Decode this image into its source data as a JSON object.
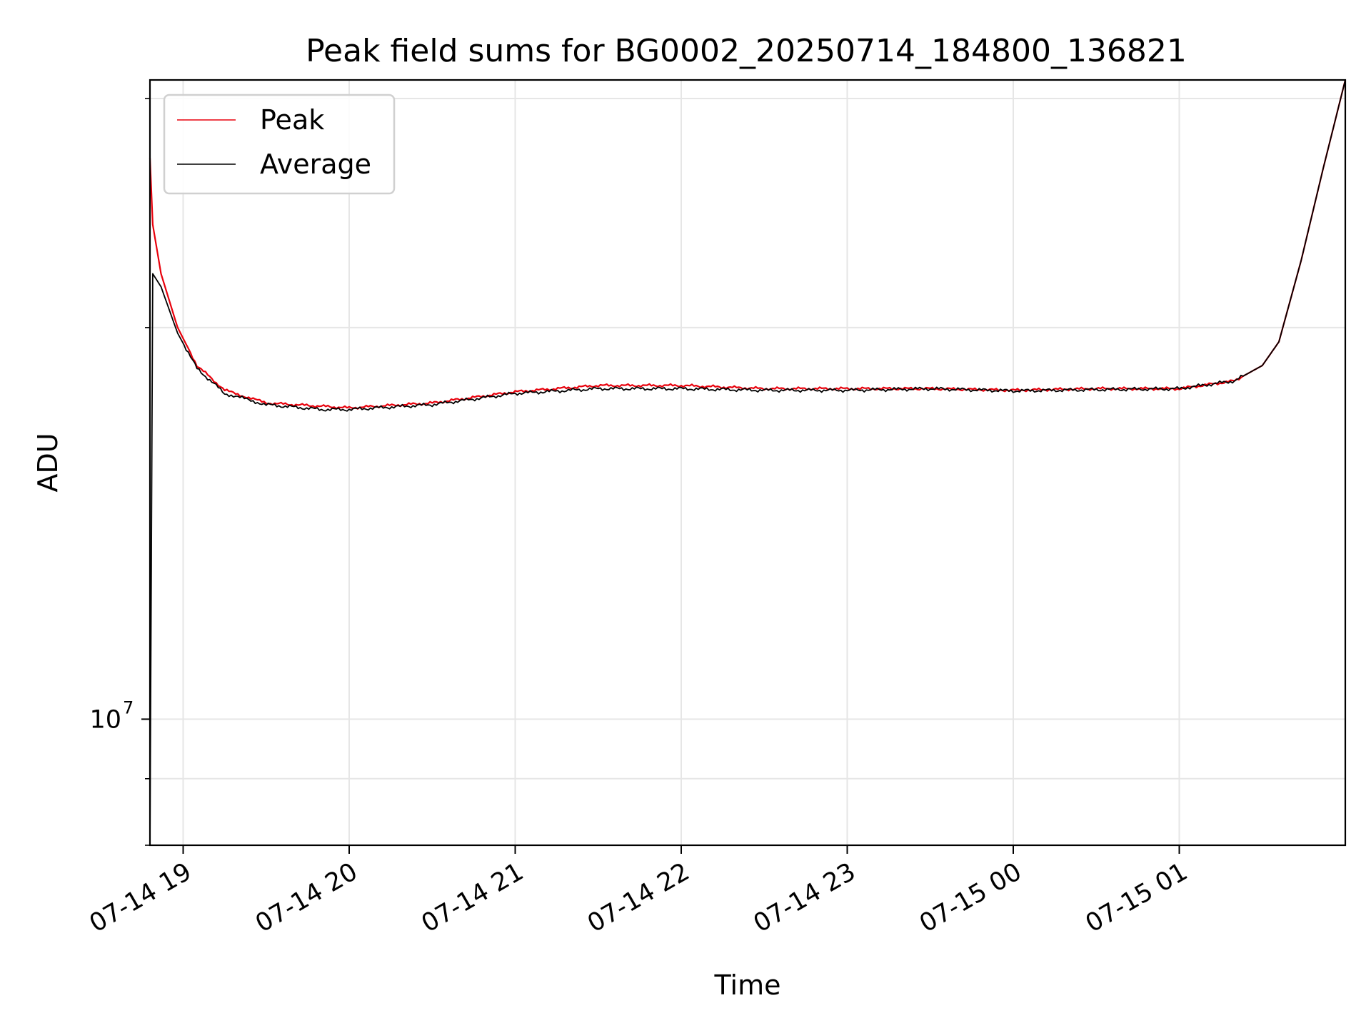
{
  "chart_data": {
    "type": "line",
    "title": "Peak field sums for BG0002_20250714_184800_136821",
    "xlabel": "Time",
    "ylabel": "ADU",
    "y_scale": "log",
    "ylim": [
      8000000,
      31000000
    ],
    "xlim": [
      "2025-07-14 18:48",
      "2025-07-15 02:00"
    ],
    "grid": true,
    "legend_placement": "top-left",
    "x_ticks": [
      {
        "value": "2025-07-14 19:00",
        "label": "07-14 19"
      },
      {
        "value": "2025-07-14 20:00",
        "label": "07-14 20"
      },
      {
        "value": "2025-07-14 21:00",
        "label": "07-14 21"
      },
      {
        "value": "2025-07-14 22:00",
        "label": "07-14 22"
      },
      {
        "value": "2025-07-14 23:00",
        "label": "07-14 23"
      },
      {
        "value": "2025-07-15 00:00",
        "label": "07-15 00"
      },
      {
        "value": "2025-07-15 01:00",
        "label": "07-15 01"
      }
    ],
    "y_ticks": [
      {
        "value": 10000000,
        "label": "10",
        "exponent": "7"
      }
    ],
    "y_minor_ticks": [
      8000000,
      9000000,
      20000000,
      30000000
    ],
    "series": [
      {
        "name": "Peak",
        "color": "#e8000b",
        "points": [
          [
            "2025-07-14 18:48",
            27000000
          ],
          [
            "2025-07-14 18:49",
            24000000
          ],
          [
            "2025-07-14 18:52",
            22000000
          ],
          [
            "2025-07-14 18:58",
            20000000
          ],
          [
            "2025-07-14 19:05",
            18700000
          ],
          [
            "2025-07-14 19:15",
            17900000
          ],
          [
            "2025-07-14 19:30",
            17500000
          ],
          [
            "2025-07-14 19:50",
            17400000
          ],
          [
            "2025-07-14 20:00",
            17350000
          ],
          [
            "2025-07-14 20:30",
            17500000
          ],
          [
            "2025-07-14 21:00",
            17850000
          ],
          [
            "2025-07-14 21:30",
            18050000
          ],
          [
            "2025-07-14 22:00",
            18050000
          ],
          [
            "2025-07-14 22:30",
            17950000
          ],
          [
            "2025-07-14 23:00",
            17950000
          ],
          [
            "2025-07-14 23:30",
            17950000
          ],
          [
            "2025-07-15 00:00",
            17900000
          ],
          [
            "2025-07-15 00:30",
            17950000
          ],
          [
            "2025-07-15 01:00",
            17950000
          ],
          [
            "2025-07-15 01:20",
            18200000
          ],
          [
            "2025-07-15 01:30",
            18700000
          ],
          [
            "2025-07-15 01:36",
            19500000
          ],
          [
            "2025-07-15 01:44",
            22500000
          ],
          [
            "2025-07-15 01:52",
            26500000
          ],
          [
            "2025-07-15 02:00",
            31000000
          ]
        ]
      },
      {
        "name": "Average",
        "color": "#000000",
        "points": [
          [
            "2025-07-14 18:48",
            8000000
          ],
          [
            "2025-07-14 18:49",
            22000000
          ],
          [
            "2025-07-14 18:52",
            21500000
          ],
          [
            "2025-07-14 18:58",
            19800000
          ],
          [
            "2025-07-14 19:05",
            18600000
          ],
          [
            "2025-07-14 19:15",
            17800000
          ],
          [
            "2025-07-14 19:30",
            17450000
          ],
          [
            "2025-07-14 19:50",
            17300000
          ],
          [
            "2025-07-14 20:00",
            17300000
          ],
          [
            "2025-07-14 20:30",
            17450000
          ],
          [
            "2025-07-14 21:00",
            17800000
          ],
          [
            "2025-07-14 21:30",
            17950000
          ],
          [
            "2025-07-14 22:00",
            17950000
          ],
          [
            "2025-07-14 22:30",
            17900000
          ],
          [
            "2025-07-14 23:00",
            17900000
          ],
          [
            "2025-07-14 23:30",
            17950000
          ],
          [
            "2025-07-15 00:00",
            17880000
          ],
          [
            "2025-07-15 00:30",
            17920000
          ],
          [
            "2025-07-15 01:00",
            17950000
          ],
          [
            "2025-07-15 01:20",
            18200000
          ],
          [
            "2025-07-15 01:30",
            18700000
          ],
          [
            "2025-07-15 01:36",
            19500000
          ],
          [
            "2025-07-15 01:44",
            22500000
          ],
          [
            "2025-07-15 01:52",
            26500000
          ],
          [
            "2025-07-15 02:00",
            31000000
          ]
        ]
      }
    ]
  }
}
